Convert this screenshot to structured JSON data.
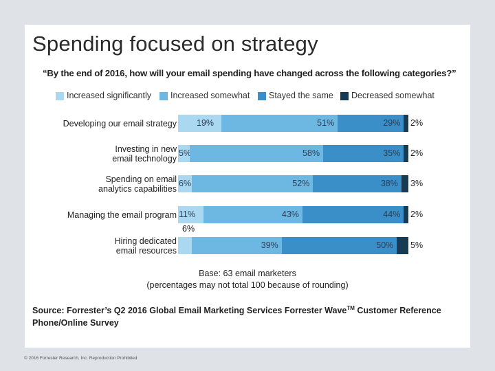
{
  "slide": {
    "title": "Spending focused on strategy",
    "footer": "© 2016 Forrester Research, Inc. Reproduction Prohibited"
  },
  "colors": {
    "increased_significantly": "#a9d8f0",
    "increased_somewhat": "#6cb8e2",
    "stayed_the_same": "#3b8fc9",
    "decreased_somewhat": "#173a55"
  },
  "chart_data": {
    "type": "bar",
    "orientation": "horizontal",
    "stacked": true,
    "title": "“By the end of 2016, how will your email spending have changed across the following categories?”",
    "categories": [
      [
        "Developing our email strategy"
      ],
      [
        "Investing in new",
        "email technology"
      ],
      [
        "Spending on email",
        "analytics capabilities"
      ],
      [
        "Managing the email program"
      ],
      [
        "Hiring dedicated",
        "email resources"
      ]
    ],
    "series": [
      {
        "name": "Increased significantly",
        "labels": [
          "19%",
          "5%",
          "6%",
          "11%",
          "6%"
        ],
        "values": [
          19,
          5,
          6,
          11,
          6
        ]
      },
      {
        "name": "Increased somewhat",
        "labels": [
          "51%",
          "58%",
          "52%",
          "43%",
          "39%"
        ],
        "values": [
          51,
          58,
          52,
          43,
          39
        ]
      },
      {
        "name": "Stayed the same",
        "labels": [
          "29%",
          "35%",
          "38%",
          "44%",
          "50%"
        ],
        "values": [
          29,
          35,
          38,
          44,
          50
        ]
      },
      {
        "name": "Decreased somewhat",
        "labels": [
          "2%",
          "2%",
          "3%",
          "2%",
          "5%"
        ],
        "values": [
          2,
          2,
          3,
          2,
          5
        ]
      }
    ],
    "base_note": [
      "Base: 63 email marketers",
      "(percentages may not total 100 because of rounding)"
    ],
    "source_pre": "Source: Forrester’s Q2 2016 Global Email Marketing Services Forrester Wave",
    "source_tm": "TM",
    "source_post": " Customer Reference Phone/Online Survey"
  }
}
